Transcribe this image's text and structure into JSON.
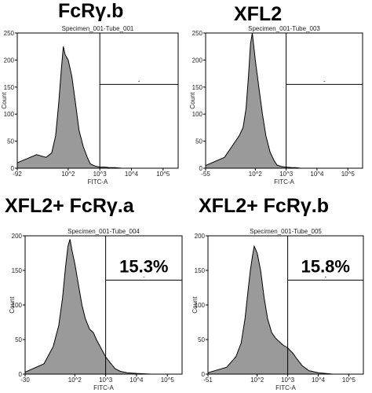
{
  "chart_data": [
    {
      "type": "area",
      "title": "FcRγ.b",
      "subtitle": "Specimen_001-Tube_001",
      "xlabel": "FITC-A",
      "ylabel": "Count",
      "x_scale": "log",
      "xlim": [
        -92,
        300000
      ],
      "ylim": [
        0,
        250
      ],
      "x_ticks": [
        "-92",
        "10^2",
        "10^3",
        "10^4",
        "10^5"
      ],
      "y_ticks": [
        "0",
        "50",
        "100",
        "150",
        "200",
        "250"
      ],
      "gate": {
        "x_start": 1000,
        "x_end": 300000,
        "label": "-",
        "percent": ""
      },
      "x": [
        -92,
        10,
        20,
        30,
        40,
        50,
        60,
        70,
        80,
        100,
        130,
        170,
        220,
        300,
        400,
        500,
        700,
        1000,
        1500,
        2000,
        3000,
        5000,
        10000,
        30000
      ],
      "y": [
        10,
        25,
        20,
        28,
        60,
        120,
        180,
        225,
        210,
        200,
        170,
        120,
        70,
        40,
        20,
        8,
        4,
        2,
        2,
        1,
        1,
        0,
        0,
        0
      ]
    },
    {
      "type": "area",
      "title": "XFL2",
      "subtitle": "Specimen_001-Tube_003",
      "xlabel": "FITC-A",
      "ylabel": "Count",
      "x_scale": "log",
      "xlim": [
        -55,
        300000
      ],
      "ylim": [
        0,
        250
      ],
      "x_ticks": [
        "-55",
        "10^2",
        "10^3",
        "10^4",
        "10^5"
      ],
      "y_ticks": [
        "0",
        "50",
        "100",
        "150",
        "200",
        "250"
      ],
      "gate": {
        "x_start": 1000,
        "x_end": 300000,
        "label": "-",
        "percent": ""
      },
      "x": [
        -55,
        10,
        20,
        30,
        40,
        50,
        60,
        70,
        80,
        100,
        130,
        170,
        220,
        300,
        400,
        500,
        700,
        1000,
        1500,
        2000,
        3000,
        5000,
        10000,
        30000
      ],
      "y": [
        5,
        20,
        45,
        60,
        75,
        110,
        170,
        230,
        250,
        200,
        150,
        100,
        60,
        30,
        15,
        6,
        3,
        2,
        1,
        1,
        0,
        0,
        0,
        0
      ]
    },
    {
      "type": "area",
      "title": "XFL2+ FcRγ.a",
      "subtitle": "Specimen_001-Tube_004",
      "xlabel": "FITC-A",
      "ylabel": "Count",
      "x_scale": "log",
      "xlim": [
        -30,
        300000
      ],
      "ylim": [
        0,
        200
      ],
      "x_ticks": [
        "-30",
        "10^2",
        "10^3",
        "10^4",
        "10^5"
      ],
      "y_ticks": [
        "0",
        "50",
        "100",
        "150",
        "200"
      ],
      "gate": {
        "x_start": 1000,
        "x_end": 300000,
        "label": "-",
        "percent": "15.3%"
      },
      "x": [
        -30,
        10,
        20,
        30,
        40,
        50,
        60,
        70,
        80,
        100,
        130,
        170,
        220,
        300,
        400,
        500,
        700,
        1000,
        1500,
        2000,
        3000,
        5000,
        10000,
        30000
      ],
      "y": [
        3,
        15,
        40,
        70,
        110,
        155,
        185,
        195,
        180,
        160,
        130,
        100,
        80,
        65,
        60,
        50,
        38,
        25,
        15,
        8,
        4,
        2,
        1,
        0
      ]
    },
    {
      "type": "area",
      "title": "XFL2+ FcRγ.b",
      "subtitle": "Specimen_001-Tube_005",
      "xlabel": "FITC-A",
      "ylabel": "Count",
      "x_scale": "log",
      "xlim": [
        -51,
        300000
      ],
      "ylim": [
        0,
        200
      ],
      "x_ticks": [
        "-51",
        "10^2",
        "10^3",
        "10^4",
        "10^5"
      ],
      "y_ticks": [
        "0",
        "50",
        "100",
        "150",
        "200"
      ],
      "gate": {
        "x_start": 1000,
        "x_end": 300000,
        "label": "-",
        "percent": "15.8%"
      },
      "x": [
        -51,
        10,
        20,
        30,
        40,
        50,
        60,
        70,
        80,
        100,
        130,
        170,
        220,
        300,
        400,
        500,
        700,
        1000,
        1500,
        2000,
        3000,
        5000,
        10000,
        30000
      ],
      "y": [
        2,
        10,
        25,
        45,
        80,
        120,
        150,
        170,
        185,
        175,
        150,
        110,
        80,
        60,
        52,
        48,
        42,
        38,
        30,
        22,
        12,
        5,
        2,
        0
      ]
    }
  ]
}
